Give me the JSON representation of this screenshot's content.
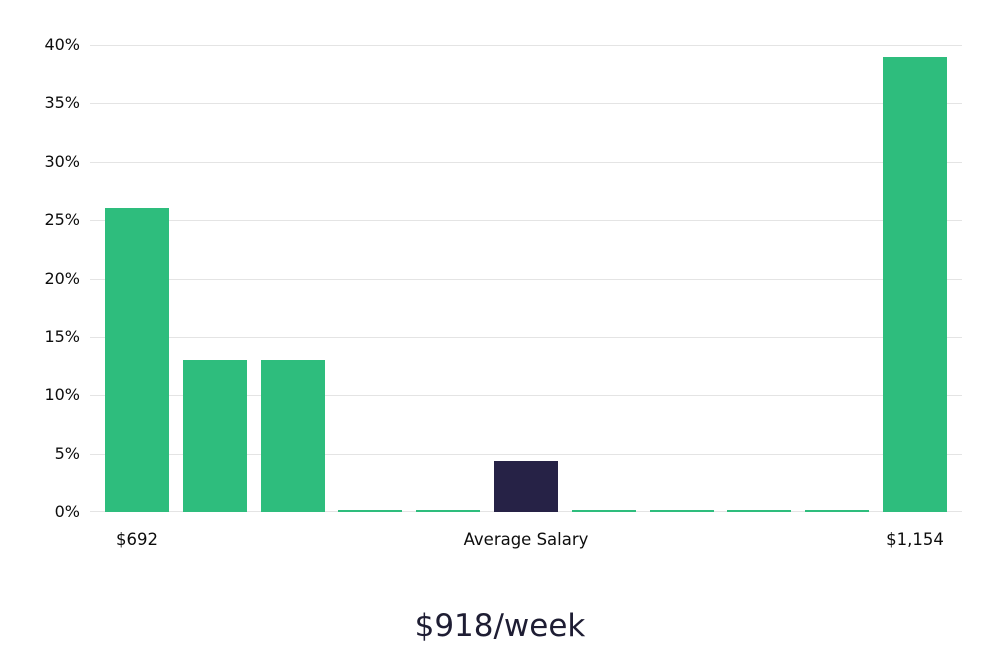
{
  "chart_data": {
    "type": "bar",
    "title": "$918/week",
    "values": [
      26,
      13,
      13,
      0.2,
      0.2,
      4.4,
      0.2,
      0.2,
      0.2,
      0.2,
      39
    ],
    "highlight_index": 5,
    "bar_color": "#2ebd7d",
    "highlight_color": "#262246",
    "ylim": [
      0,
      40
    ],
    "grid": true,
    "legend": false,
    "yticks": [
      {
        "value": 0,
        "label": "0%"
      },
      {
        "value": 5,
        "label": "5%"
      },
      {
        "value": 10,
        "label": "10%"
      },
      {
        "value": 15,
        "label": "15%"
      },
      {
        "value": 20,
        "label": "20%"
      },
      {
        "value": 25,
        "label": "25%"
      },
      {
        "value": 30,
        "label": "30%"
      },
      {
        "value": 35,
        "label": "35%"
      },
      {
        "value": 40,
        "label": "40%"
      }
    ],
    "xticks": {
      "left": "$692",
      "center": "Average Salary",
      "right": "$1,154"
    }
  }
}
